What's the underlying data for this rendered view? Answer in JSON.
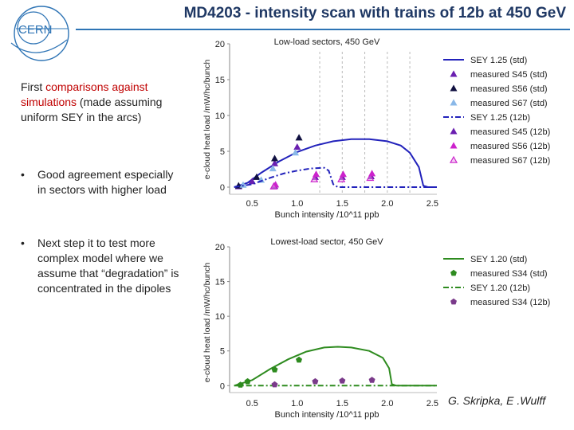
{
  "slide": {
    "title": "MD4203 - intensity scan with trains of 12b at 450 GeV",
    "logo_text": "CERN",
    "intro": {
      "p1": "First ",
      "p2": "comparisons against simulations",
      "p3": " (made assuming uniform SEY  in the arcs)"
    },
    "bullets": [
      "Good agreement especially in sectors with higher load",
      "Next step it to test more complex model where we assume that “degradation” is concentrated in the dipoles"
    ],
    "bullet_symbol": "•",
    "credit": "G. Skripka, E .Wulff"
  },
  "colors": {
    "title": "#1f3864",
    "accent": "#c00000",
    "blue": "#2222bb",
    "green": "#2e8b1f"
  },
  "chart_data": [
    {
      "type": "line",
      "title": "Low-load sectors, 450 GeV",
      "xlabel": "Bunch intensity /10^11 ppb",
      "ylabel": "e-cloud heat load /mW/hc/bunch",
      "xlim": [
        0.25,
        2.55
      ],
      "ylim": [
        -1,
        20
      ],
      "xticks": [
        0.5,
        1.0,
        1.5,
        2.0,
        2.5
      ],
      "xtick_labels": [
        "0.5",
        "1.0",
        "1.5",
        "2.0",
        "2.5"
      ],
      "yticks": [
        0,
        5,
        10,
        15,
        20
      ],
      "ytick_labels": [
        "0",
        "5",
        "10",
        "15",
        "20"
      ],
      "vlines": [
        1.25,
        1.5,
        1.75,
        2.0,
        2.25
      ],
      "series": [
        {
          "name": "SEY 1.25 (std)",
          "kind": "line",
          "dash": "solid",
          "color": "#2222bb",
          "x": [
            0.3,
            0.45,
            0.6,
            0.8,
            1.0,
            1.2,
            1.4,
            1.6,
            1.8,
            2.0,
            2.15,
            2.25,
            2.35,
            2.4,
            2.45,
            2.55
          ],
          "y": [
            0,
            0.6,
            2.0,
            3.6,
            4.9,
            5.8,
            6.4,
            6.7,
            6.7,
            6.4,
            5.8,
            4.8,
            2.8,
            0.2,
            0,
            0
          ]
        },
        {
          "name": "measured S45 (std)",
          "kind": "scatter",
          "marker": "triangle",
          "color": "#6a1fb0",
          "x": [
            0.35,
            0.5,
            0.75,
            1.0
          ],
          "y": [
            0.1,
            0.8,
            3.3,
            5.6
          ]
        },
        {
          "name": "measured S56 (std)",
          "kind": "scatter",
          "marker": "triangle",
          "color": "#101040",
          "x": [
            0.35,
            0.55,
            0.75,
            1.02
          ],
          "y": [
            0.2,
            1.4,
            4.0,
            6.9
          ]
        },
        {
          "name": "measured S67 (std)",
          "kind": "scatter",
          "marker": "triangle",
          "color": "#8ab8e8",
          "x": [
            0.4,
            0.6,
            0.73,
            0.98
          ],
          "y": [
            0.3,
            1.0,
            2.6,
            4.8
          ]
        },
        {
          "name": "SEY 1.25 (12b)",
          "kind": "line",
          "dash": "dashdot",
          "color": "#2222bb",
          "x": [
            0.3,
            0.5,
            0.7,
            0.85,
            1.0,
            1.15,
            1.3,
            1.35,
            1.4,
            1.45,
            1.5,
            2.55
          ],
          "y": [
            0,
            0.4,
            1.3,
            1.9,
            2.3,
            2.6,
            2.7,
            2.3,
            0.4,
            0,
            0,
            0
          ]
        },
        {
          "name": "measured S45 (12b)",
          "kind": "scatter",
          "marker": "triangle",
          "color": "#6a1fb0",
          "x": [
            0.75,
            1.2,
            1.5,
            1.82
          ],
          "y": [
            0.15,
            1.4,
            1.4,
            1.5
          ]
        },
        {
          "name": "measured S56 (12b)",
          "kind": "scatter",
          "marker": "triangle",
          "color": "#cc22cc",
          "x": [
            0.76,
            1.21,
            1.51,
            1.83
          ],
          "y": [
            0.35,
            1.8,
            1.8,
            1.9
          ]
        },
        {
          "name": "measured S67 (12b)",
          "kind": "scatter",
          "marker": "triangle-open",
          "color": "#cc22cc",
          "x": [
            0.74,
            1.19,
            1.49,
            1.81
          ],
          "y": [
            0.1,
            1.1,
            1.1,
            1.3
          ]
        }
      ]
    },
    {
      "type": "line",
      "title": "Lowest-load sector, 450 GeV",
      "xlabel": "Bunch intensity /10^11 ppb",
      "ylabel": "e-cloud heat load /mW/hc/bunch",
      "xlim": [
        0.25,
        2.55
      ],
      "ylim": [
        -1,
        20
      ],
      "xticks": [
        0.5,
        1.0,
        1.5,
        2.0,
        2.5
      ],
      "xtick_labels": [
        "0.5",
        "1.0",
        "1.5",
        "2.0",
        "2.5"
      ],
      "yticks": [
        0,
        5,
        10,
        15,
        20
      ],
      "ytick_labels": [
        "0",
        "5",
        "10",
        "15",
        "20"
      ],
      "vlines": [],
      "series": [
        {
          "name": "SEY 1.20 (std)",
          "kind": "line",
          "dash": "solid",
          "color": "#2e8b1f",
          "x": [
            0.3,
            0.5,
            0.7,
            0.9,
            1.1,
            1.3,
            1.45,
            1.6,
            1.8,
            1.95,
            2.02,
            2.05,
            2.1,
            2.55
          ],
          "y": [
            0,
            0.8,
            2.4,
            3.8,
            4.9,
            5.5,
            5.6,
            5.5,
            5.0,
            4.0,
            2.5,
            0.2,
            0,
            0
          ]
        },
        {
          "name": "measured S34 (std)",
          "kind": "scatter",
          "marker": "pentagon",
          "color": "#2e8b1f",
          "x": [
            0.37,
            0.45,
            0.75,
            1.02
          ],
          "y": [
            0.1,
            0.6,
            2.3,
            3.7
          ]
        },
        {
          "name": "SEY 1.20 (12b)",
          "kind": "line",
          "dash": "dashdot",
          "color": "#2e8b1f",
          "x": [
            0.3,
            2.55
          ],
          "y": [
            0,
            0
          ]
        },
        {
          "name": "measured S34 (12b)",
          "kind": "scatter",
          "marker": "pentagon",
          "color": "#7a3a8a",
          "x": [
            0.75,
            1.2,
            1.5,
            1.83
          ],
          "y": [
            0.15,
            0.6,
            0.7,
            0.8
          ]
        }
      ]
    }
  ]
}
